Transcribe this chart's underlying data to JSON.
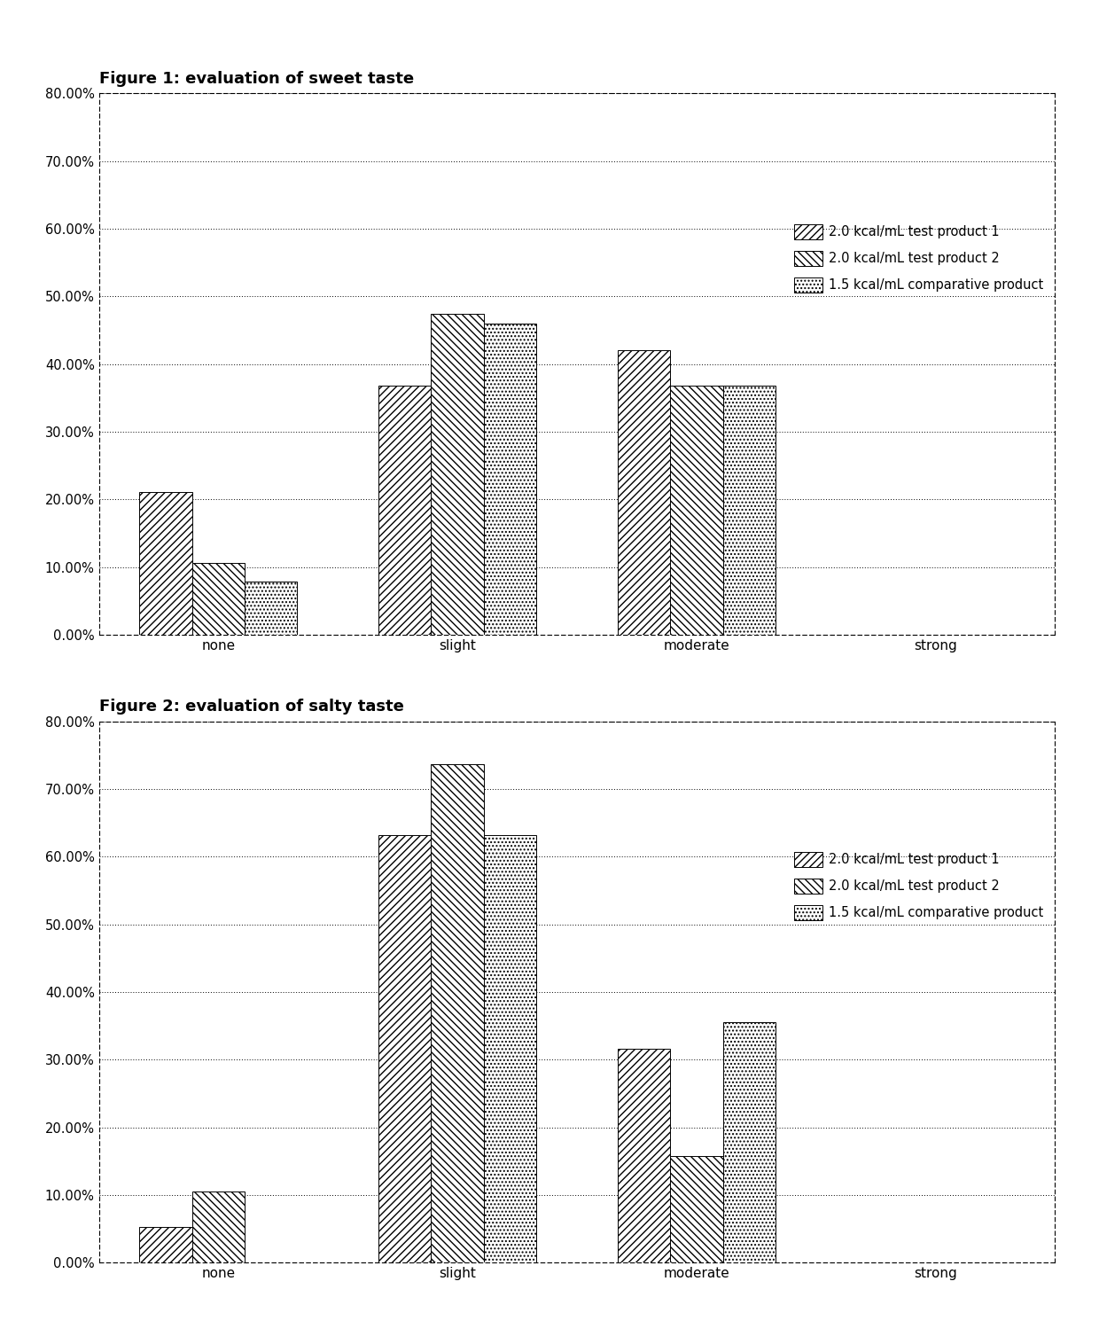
{
  "fig1_title": "Figure 1: evaluation of sweet taste",
  "fig2_title": "Figure 2: evaluation of salty taste",
  "categories": [
    "none",
    "slight",
    "moderate",
    "strong"
  ],
  "legend_labels": [
    "2.0 kcal/mL test product 1",
    "2.0 kcal/mL test product 2",
    "1.5 kcal/mL comparative product"
  ],
  "fig1_data": {
    "product1": [
      0.2105,
      0.3684,
      0.4211,
      0.0
    ],
    "product2": [
      0.1053,
      0.4737,
      0.3684,
      0.0
    ],
    "product3": [
      0.0789,
      0.4605,
      0.3684,
      0.0
    ]
  },
  "fig2_data": {
    "product1": [
      0.0526,
      0.6316,
      0.3158,
      0.0
    ],
    "product2": [
      0.1053,
      0.7368,
      0.1579,
      0.0
    ],
    "product3": [
      0.0,
      0.6316,
      0.3553,
      0.0
    ]
  },
  "ylim": [
    0.0,
    0.8
  ],
  "yticks": [
    0.0,
    0.1,
    0.2,
    0.3,
    0.4,
    0.5,
    0.6,
    0.7,
    0.8
  ],
  "ytick_labels": [
    "0.00%",
    "10.00%",
    "20.00%",
    "30.00%",
    "40.00%",
    "50.00%",
    "60.00%",
    "70.00%",
    "80.00%"
  ],
  "bar_width": 0.22,
  "figsize": [
    12.4,
    15.07
  ],
  "dpi": 100
}
